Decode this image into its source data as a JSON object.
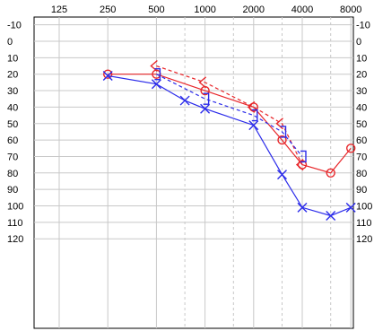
{
  "chart_data": {
    "type": "line",
    "title": "",
    "xlabel": "",
    "ylabel": "",
    "x_scale": "log",
    "y_inverted": true,
    "grid": true,
    "x_ticks": [
      "125",
      "250",
      "500",
      "1000",
      "2000",
      "4000",
      "8000"
    ],
    "x_tick_values": [
      125,
      250,
      500,
      1000,
      2000,
      4000,
      8000
    ],
    "x_dashed_gridlines": [
      750,
      1500,
      3000,
      6000
    ],
    "y_ticks": [
      "-10",
      "0",
      "10",
      "20",
      "30",
      "40",
      "50",
      "60",
      "70",
      "80",
      "90",
      "100",
      "110",
      "120"
    ],
    "y_tick_values": [
      -10,
      0,
      10,
      20,
      30,
      40,
      50,
      60,
      70,
      80,
      90,
      100,
      110,
      120
    ],
    "ylim": [
      -10,
      120
    ],
    "xlim": [
      125,
      8000
    ],
    "series": [
      {
        "marker": "circle",
        "line": "solid",
        "color": "#e8262a",
        "x": [
          250,
          500,
          1000,
          2000,
          3000,
          4000,
          6000,
          8000
        ],
        "y": [
          20,
          20,
          30,
          40,
          60,
          75,
          80,
          65
        ]
      },
      {
        "marker": "cross",
        "line": "solid",
        "color": "#2b2bea",
        "x": [
          250,
          500,
          750,
          1000,
          2000,
          3000,
          4000,
          6000,
          8000
        ],
        "y": [
          21,
          26,
          36,
          41,
          51,
          81,
          101,
          106,
          101
        ]
      },
      {
        "marker": "bracket-left",
        "line": "dashed",
        "color": "#e8262a",
        "x": [
          500,
          1000,
          2000,
          3000,
          4000
        ],
        "y": [
          15,
          25,
          40,
          50,
          75
        ]
      },
      {
        "marker": "bracket-right",
        "line": "dashed",
        "color": "#2b2bea",
        "x": [
          500,
          1000,
          2000,
          3000,
          4000
        ],
        "y": [
          20,
          35,
          45,
          55,
          70
        ]
      }
    ]
  }
}
